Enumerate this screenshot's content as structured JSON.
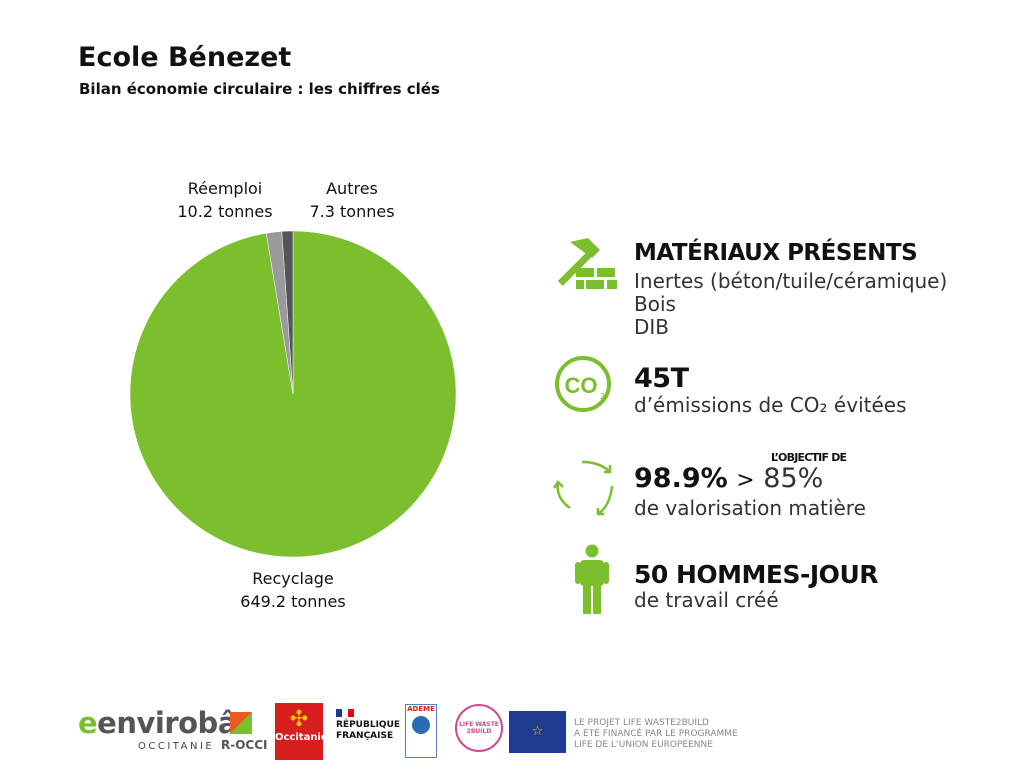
{
  "header": {
    "title": "Ecole Bénezet",
    "subtitle": "Bilan économie circulaire : les chiffres clés"
  },
  "chart_data": {
    "type": "pie",
    "title": "",
    "unit": "tonnes",
    "slices": [
      {
        "name": "Recyclage",
        "value": 649.2,
        "label": "649.2 tonnes",
        "color": "#7cbf2e"
      },
      {
        "name": "Réemploi",
        "value": 10.2,
        "label": "10.2 tonnes",
        "color": "#9a9a9a"
      },
      {
        "name": "Autres",
        "value": 7.3,
        "label": "7.3 tonnes",
        "color": "#555555"
      }
    ]
  },
  "stats": {
    "materials": {
      "heading": "MATÉRIAUX PRÉSENTS",
      "items": [
        "Inertes (béton/tuile/céramique)",
        "Bois",
        "DIB"
      ]
    },
    "co2": {
      "value": "45T",
      "text": "d’émissions de CO₂ évitées"
    },
    "valorisation": {
      "value": "98.9%",
      "compare": ">",
      "target": "85%",
      "target_label": "L’OBJECTIF DE",
      "text": "de valorisation matière"
    },
    "jobs": {
      "value": "50 HOMMES-JOUR",
      "text": "de travail créé"
    }
  },
  "footer": {
    "envirobat": "envirobât",
    "envirobat_sub": "OCCITANIE",
    "rocci": "R-OCCI",
    "occitanie": "Occitanie",
    "republique": "RÉPUBLIQUE FRANÇAISE",
    "ademe": "ADEME",
    "life": "LIFE WASTE 2BUILD",
    "eu_text": [
      "LE PROJET LIFE WASTE2BUILD",
      "A ÉTÉ FINANCÉ PAR LE PROGRAMME",
      "LIFE DE L’UNION EUROPÉENNE"
    ]
  }
}
